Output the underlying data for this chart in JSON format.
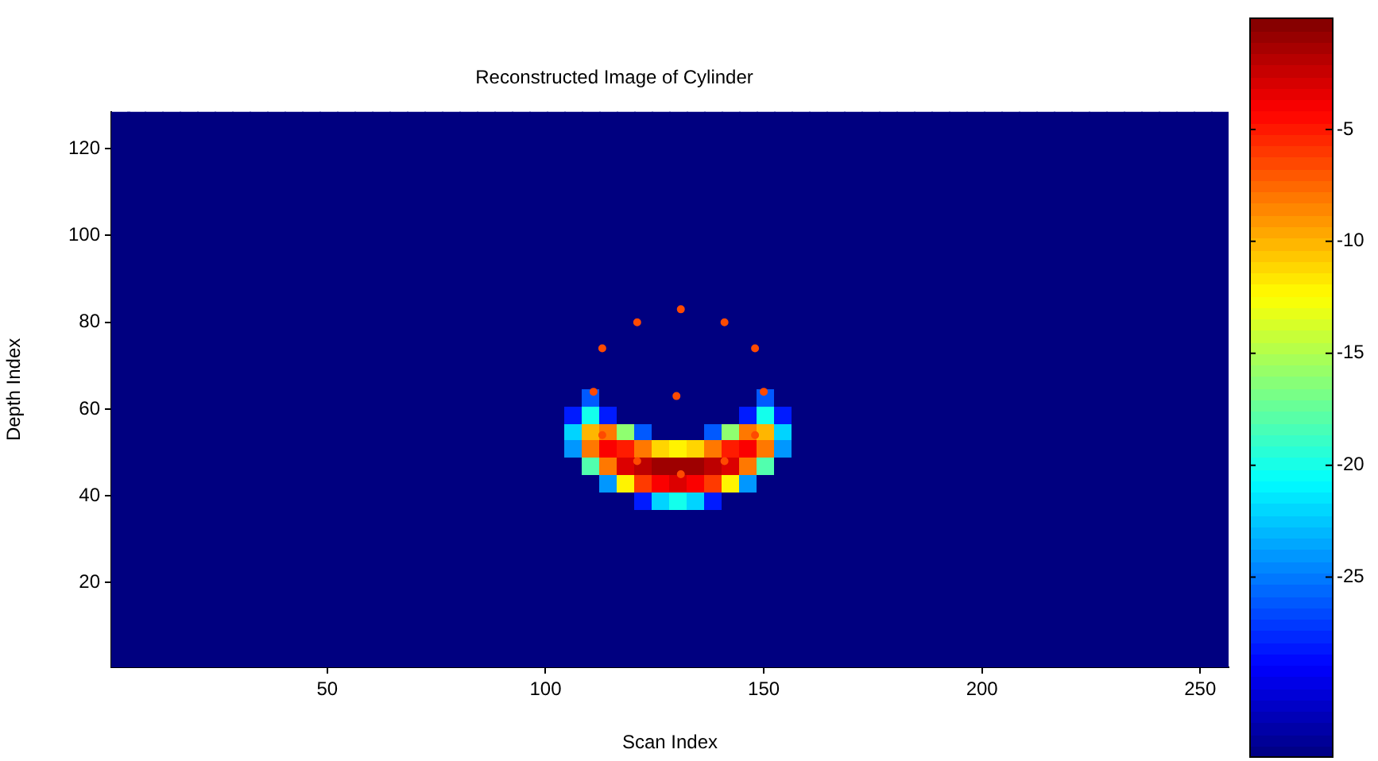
{
  "chart_data": {
    "type": "heatmap",
    "title": "Reconstructed Image of Cylinder",
    "xlabel": "Scan Index",
    "ylabel": "Depth Index",
    "xlim": [
      0.5,
      256.5
    ],
    "ylim": [
      0.5,
      128.5
    ],
    "xticks": [
      50,
      100,
      150,
      200,
      250
    ],
    "yticks": [
      20,
      40,
      60,
      80,
      100,
      120
    ],
    "clim": [
      -33,
      0
    ],
    "cticks": [
      -25,
      -20,
      -15,
      -10,
      -5
    ],
    "grid": false,
    "x": [
      2.5,
      6.5,
      10.5,
      14.5,
      18.5,
      22.5,
      26.5,
      30.5,
      34.5,
      38.5,
      42.5,
      46.5,
      50.5,
      54.5,
      58.5,
      62.5,
      66.5,
      70.5,
      74.5,
      78.5,
      82.5,
      86.5,
      90.5,
      94.5,
      98.5,
      102.5,
      106.5,
      110.5,
      114.5,
      118.5,
      122.5,
      126.5,
      130.5,
      134.5,
      138.5,
      142.5,
      146.5,
      150.5,
      154.5,
      158.5,
      162.5,
      166.5,
      170.5,
      174.5,
      178.5,
      182.5,
      186.5,
      190.5,
      194.5,
      198.5,
      202.5,
      206.5,
      210.5,
      214.5,
      218.5,
      222.5,
      226.5,
      230.5,
      234.5,
      238.5,
      242.5,
      246.5,
      250.5,
      254.5
    ],
    "y": [
      126.5,
      122.5,
      118.5,
      114.5,
      110.5,
      106.5,
      102.5,
      98.5,
      94.5,
      90.5,
      86.5,
      82.5,
      78.5,
      74.5,
      70.5,
      66.5,
      62.5,
      58.5,
      54.5,
      50.5,
      46.5,
      42.5,
      38.5,
      34.5,
      30.5,
      26.5,
      22.5,
      18.5,
      14.5,
      10.5,
      6.5,
      2.5
    ],
    "cells": [
      [
        -33,
        -33,
        -33,
        -33,
        -33,
        -33,
        -33,
        -33,
        -33,
        -33,
        -33,
        -33,
        -33,
        -33,
        -33,
        -33,
        -33,
        -33,
        -33,
        -33,
        -33,
        -33,
        -33,
        -33,
        -33,
        -33,
        -33,
        -33,
        -33,
        -33,
        -33,
        -33,
        -33,
        -33,
        -33,
        -33,
        -33,
        -33,
        -33,
        -33,
        -33,
        -33,
        -33,
        -33,
        -33,
        -33,
        -33,
        -33,
        -33,
        -33,
        -33,
        -33,
        -33,
        -33,
        -33,
        -33,
        -33,
        -33,
        -33,
        -33,
        -33,
        -33,
        -33,
        -33
      ],
      [
        -33,
        -33,
        -33,
        -33,
        -33,
        -33,
        -33,
        -33,
        -33,
        -33,
        -33,
        -33,
        -33,
        -33,
        -33,
        -33,
        -33,
        -33,
        -33,
        -33,
        -33,
        -33,
        -33,
        -33,
        -33,
        -33,
        -33,
        -33,
        -33,
        -33,
        -33,
        -33,
        -33,
        -33,
        -33,
        -33,
        -33,
        -33,
        -33,
        -33,
        -33,
        -33,
        -33,
        -33,
        -33,
        -33,
        -33,
        -33,
        -33,
        -33,
        -33,
        -33,
        -33,
        -33,
        -33,
        -33,
        -33,
        -33,
        -33,
        -33,
        -33,
        -33,
        -33,
        -33
      ],
      [
        -33,
        -33,
        -33,
        -33,
        -33,
        -33,
        -33,
        -33,
        -33,
        -33,
        -33,
        -33,
        -33,
        -33,
        -33,
        -33,
        -33,
        -33,
        -33,
        -33,
        -33,
        -33,
        -33,
        -33,
        -33,
        -33,
        -33,
        -33,
        -33,
        -33,
        -33,
        -33,
        -33,
        -33,
        -33,
        -33,
        -33,
        -33,
        -33,
        -33,
        -33,
        -33,
        -33,
        -33,
        -33,
        -33,
        -33,
        -33,
        -33,
        -33,
        -33,
        -33,
        -33,
        -33,
        -33,
        -33,
        -33,
        -33,
        -33,
        -33,
        -33,
        -33,
        -33,
        -33
      ],
      [
        -33,
        -33,
        -33,
        -33,
        -33,
        -33,
        -33,
        -33,
        -33,
        -33,
        -33,
        -33,
        -33,
        -33,
        -33,
        -33,
        -33,
        -33,
        -33,
        -33,
        -33,
        -33,
        -33,
        -33,
        -33,
        -33,
        -33,
        -33,
        -33,
        -33,
        -33,
        -33,
        -33,
        -33,
        -33,
        -33,
        -33,
        -33,
        -33,
        -33,
        -33,
        -33,
        -33,
        -33,
        -33,
        -33,
        -33,
        -33,
        -33,
        -33,
        -33,
        -33,
        -33,
        -33,
        -33,
        -33,
        -33,
        -33,
        -33,
        -33,
        -33,
        -33,
        -33,
        -33
      ],
      [
        -33,
        -33,
        -33,
        -33,
        -33,
        -33,
        -33,
        -33,
        -33,
        -33,
        -33,
        -33,
        -33,
        -33,
        -33,
        -33,
        -33,
        -33,
        -33,
        -33,
        -33,
        -33,
        -33,
        -33,
        -33,
        -33,
        -33,
        -33,
        -33,
        -33,
        -33,
        -33,
        -33,
        -33,
        -33,
        -33,
        -33,
        -33,
        -33,
        -33,
        -33,
        -33,
        -33,
        -33,
        -33,
        -33,
        -33,
        -33,
        -33,
        -33,
        -33,
        -33,
        -33,
        -33,
        -33,
        -33,
        -33,
        -33,
        -33,
        -33,
        -33,
        -33,
        -33,
        -33
      ],
      [
        -33,
        -33,
        -33,
        -33,
        -33,
        -33,
        -33,
        -33,
        -33,
        -33,
        -33,
        -33,
        -33,
        -33,
        -33,
        -33,
        -33,
        -33,
        -33,
        -33,
        -33,
        -33,
        -33,
        -33,
        -33,
        -33,
        -33,
        -33,
        -33,
        -33,
        -33,
        -33,
        -33,
        -33,
        -33,
        -33,
        -33,
        -33,
        -33,
        -33,
        -33,
        -33,
        -33,
        -33,
        -33,
        -33,
        -33,
        -33,
        -33,
        -33,
        -33,
        -33,
        -33,
        -33,
        -33,
        -33,
        -33,
        -33,
        -33,
        -33,
        -33,
        -33,
        -33,
        -33
      ],
      [
        -33,
        -33,
        -33,
        -33,
        -33,
        -33,
        -33,
        -33,
        -33,
        -33,
        -33,
        -33,
        -33,
        -33,
        -33,
        -33,
        -33,
        -33,
        -33,
        -33,
        -33,
        -33,
        -33,
        -33,
        -33,
        -33,
        -33,
        -33,
        -33,
        -33,
        -33,
        -33,
        -33,
        -33,
        -33,
        -33,
        -33,
        -33,
        -33,
        -33,
        -33,
        -33,
        -33,
        -33,
        -33,
        -33,
        -33,
        -33,
        -33,
        -33,
        -33,
        -33,
        -33,
        -33,
        -33,
        -33,
        -33,
        -33,
        -33,
        -33,
        -33,
        -33,
        -33,
        -33
      ],
      [
        -33,
        -33,
        -33,
        -33,
        -33,
        -33,
        -33,
        -33,
        -33,
        -33,
        -33,
        -33,
        -33,
        -33,
        -33,
        -33,
        -33,
        -33,
        -33,
        -33,
        -33,
        -33,
        -33,
        -33,
        -33,
        -33,
        -33,
        -33,
        -33,
        -33,
        -33,
        -33,
        -33,
        -33,
        -33,
        -33,
        -33,
        -33,
        -33,
        -33,
        -33,
        -33,
        -33,
        -33,
        -33,
        -33,
        -33,
        -33,
        -33,
        -33,
        -33,
        -33,
        -33,
        -33,
        -33,
        -33,
        -33,
        -33,
        -33,
        -33,
        -33,
        -33,
        -33,
        -33
      ],
      [
        -33,
        -33,
        -33,
        -33,
        -33,
        -33,
        -33,
        -33,
        -33,
        -33,
        -33,
        -33,
        -33,
        -33,
        -33,
        -33,
        -33,
        -33,
        -33,
        -33,
        -33,
        -33,
        -33,
        -33,
        -33,
        -33,
        -33,
        -33,
        -33,
        -33,
        -33,
        -33,
        -33,
        -33,
        -33,
        -33,
        -33,
        -33,
        -33,
        -33,
        -33,
        -33,
        -33,
        -33,
        -33,
        -33,
        -33,
        -33,
        -33,
        -33,
        -33,
        -33,
        -33,
        -33,
        -33,
        -33,
        -33,
        -33,
        -33,
        -33,
        -33,
        -33,
        -33,
        -33
      ],
      [
        -33,
        -33,
        -33,
        -33,
        -33,
        -33,
        -33,
        -33,
        -33,
        -33,
        -33,
        -33,
        -33,
        -33,
        -33,
        -33,
        -33,
        -33,
        -33,
        -33,
        -33,
        -33,
        -33,
        -33,
        -33,
        -33,
        -33,
        -33,
        -33,
        -33,
        -33,
        -33,
        -33,
        -33,
        -33,
        -33,
        -33,
        -33,
        -33,
        -33,
        -33,
        -33,
        -33,
        -33,
        -33,
        -33,
        -33,
        -33,
        -33,
        -33,
        -33,
        -33,
        -33,
        -33,
        -33,
        -33,
        -33,
        -33,
        -33,
        -33,
        -33,
        -33,
        -33,
        -33
      ],
      [
        -33,
        -33,
        -33,
        -33,
        -33,
        -33,
        -33,
        -33,
        -33,
        -33,
        -33,
        -33,
        -33,
        -33,
        -33,
        -33,
        -33,
        -33,
        -33,
        -33,
        -33,
        -33,
        -33,
        -33,
        -33,
        -33,
        -33,
        -33,
        -33,
        -33,
        -33,
        -33,
        -33,
        -33,
        -33,
        -33,
        -33,
        -33,
        -33,
        -33,
        -33,
        -33,
        -33,
        -33,
        -33,
        -33,
        -33,
        -33,
        -33,
        -33,
        -33,
        -33,
        -33,
        -33,
        -33,
        -33,
        -33,
        -33,
        -33,
        -33,
        -33,
        -33,
        -33,
        -33
      ],
      [
        -33,
        -33,
        -33,
        -33,
        -33,
        -33,
        -33,
        -33,
        -33,
        -33,
        -33,
        -33,
        -33,
        -33,
        -33,
        -33,
        -33,
        -33,
        -33,
        -33,
        -33,
        -33,
        -33,
        -33,
        -33,
        -33,
        -33,
        -33,
        -33,
        -33,
        -33,
        -33,
        -33,
        -33,
        -33,
        -33,
        -33,
        -33,
        -33,
        -33,
        -33,
        -33,
        -33,
        -33,
        -33,
        -33,
        -33,
        -33,
        -33,
        -33,
        -33,
        -33,
        -33,
        -33,
        -33,
        -33,
        -33,
        -33,
        -33,
        -33,
        -33,
        -33,
        -33,
        -33
      ],
      [
        -33,
        -33,
        -33,
        -33,
        -33,
        -33,
        -33,
        -33,
        -33,
        -33,
        -33,
        -33,
        -33,
        -33,
        -33,
        -33,
        -33,
        -33,
        -33,
        -33,
        -33,
        -33,
        -33,
        -33,
        -33,
        -33,
        -33,
        -33,
        -33,
        -33,
        -33,
        -33,
        -33,
        -33,
        -33,
        -33,
        -33,
        -33,
        -33,
        -33,
        -33,
        -33,
        -33,
        -33,
        -33,
        -33,
        -33,
        -33,
        -33,
        -33,
        -33,
        -33,
        -33,
        -33,
        -33,
        -33,
        -33,
        -33,
        -33,
        -33,
        -33,
        -33,
        -33,
        -33
      ],
      [
        -33,
        -33,
        -33,
        -33,
        -33,
        -33,
        -33,
        -33,
        -33,
        -33,
        -33,
        -33,
        -33,
        -33,
        -33,
        -33,
        -33,
        -33,
        -33,
        -33,
        -33,
        -33,
        -33,
        -33,
        -33,
        -33,
        -33,
        -33,
        -33,
        -33,
        -33,
        -33,
        -33,
        -33,
        -33,
        -33,
        -33,
        -33,
        -33,
        -33,
        -33,
        -33,
        -33,
        -33,
        -33,
        -33,
        -33,
        -33,
        -33,
        -33,
        -33,
        -33,
        -33,
        -33,
        -33,
        -33,
        -33,
        -33,
        -33,
        -33,
        -33,
        -33,
        -33,
        -33
      ],
      [
        -33,
        -33,
        -33,
        -33,
        -33,
        -33,
        -33,
        -33,
        -33,
        -33,
        -33,
        -33,
        -33,
        -33,
        -33,
        -33,
        -33,
        -33,
        -33,
        -33,
        -33,
        -33,
        -33,
        -33,
        -33,
        -33,
        -33,
        -33,
        -33,
        -33,
        -33,
        -33,
        -33,
        -33,
        -33,
        -33,
        -33,
        -33,
        -33,
        -33,
        -33,
        -33,
        -33,
        -33,
        -33,
        -33,
        -33,
        -33,
        -33,
        -33,
        -33,
        -33,
        -33,
        -33,
        -33,
        -33,
        -33,
        -33,
        -33,
        -33,
        -33,
        -33,
        -33,
        -33
      ],
      [
        -33,
        -33,
        -33,
        -33,
        -33,
        -33,
        -33,
        -33,
        -33,
        -33,
        -33,
        -33,
        -33,
        -33,
        -33,
        -33,
        -33,
        -33,
        -33,
        -33,
        -33,
        -33,
        -33,
        -33,
        -33,
        -33,
        -33,
        -33,
        -33,
        -33,
        -33,
        -33,
        -33,
        -33,
        -33,
        -33,
        -33,
        -33,
        -33,
        -33,
        -33,
        -33,
        -33,
        -33,
        -33,
        -33,
        -33,
        -33,
        -33,
        -33,
        -33,
        -33,
        -33,
        -33,
        -33,
        -33,
        -33,
        -33,
        -33,
        -33,
        -33,
        -33,
        -33,
        -33
      ],
      [
        -33,
        -33,
        -33,
        -33,
        -33,
        -33,
        -33,
        -33,
        -33,
        -33,
        -33,
        -33,
        -33,
        -33,
        -33,
        -33,
        -33,
        -33,
        -33,
        -33,
        -33,
        -33,
        -33,
        -33,
        -33,
        -33,
        -33,
        -26,
        -33,
        -33,
        -33,
        -33,
        -33,
        -33,
        -33,
        -33,
        -33,
        -26,
        -33,
        -33,
        -33,
        -33,
        -33,
        -33,
        -33,
        -33,
        -33,
        -33,
        -33,
        -33,
        -33,
        -33,
        -33,
        -33,
        -33,
        -33,
        -33,
        -33,
        -33,
        -33,
        -33,
        -33,
        -33,
        -33
      ],
      [
        -33,
        -33,
        -33,
        -33,
        -33,
        -33,
        -33,
        -33,
        -33,
        -33,
        -33,
        -33,
        -33,
        -33,
        -33,
        -33,
        -33,
        -33,
        -33,
        -33,
        -33,
        -33,
        -33,
        -33,
        -33,
        -33,
        -28,
        -20,
        -28,
        -33,
        -33,
        -33,
        -33,
        -33,
        -33,
        -33,
        -28,
        -20,
        -28,
        -33,
        -33,
        -33,
        -33,
        -33,
        -33,
        -33,
        -33,
        -33,
        -33,
        -33,
        -33,
        -33,
        -33,
        -33,
        -33,
        -33,
        -33,
        -33,
        -33,
        -33,
        -33,
        -33,
        -33,
        -33
      ],
      [
        -33,
        -33,
        -33,
        -33,
        -33,
        -33,
        -33,
        -33,
        -33,
        -33,
        -33,
        -33,
        -33,
        -33,
        -33,
        -33,
        -33,
        -33,
        -33,
        -33,
        -33,
        -33,
        -33,
        -33,
        -33,
        -33,
        -22,
        -10,
        -8,
        -16,
        -26,
        -33,
        -33,
        -33,
        -26,
        -16,
        -8,
        -10,
        -22,
        -33,
        -33,
        -33,
        -33,
        -33,
        -33,
        -33,
        -33,
        -33,
        -33,
        -33,
        -33,
        -33,
        -33,
        -33,
        -33,
        -33,
        -33,
        -33,
        -33,
        -33,
        -33,
        -33,
        -33,
        -33
      ],
      [
        -33,
        -33,
        -33,
        -33,
        -33,
        -33,
        -33,
        -33,
        -33,
        -33,
        -33,
        -33,
        -33,
        -33,
        -33,
        -33,
        -33,
        -33,
        -33,
        -33,
        -33,
        -33,
        -33,
        -33,
        -33,
        -33,
        -24,
        -8,
        -4,
        -5,
        -8,
        -11,
        -12,
        -11,
        -8,
        -5,
        -4,
        -8,
        -24,
        -33,
        -33,
        -33,
        -33,
        -33,
        -33,
        -33,
        -33,
        -33,
        -33,
        -33,
        -33,
        -33,
        -33,
        -33,
        -33,
        -33,
        -33,
        -33,
        -33,
        -33,
        -33,
        -33,
        -33,
        -33
      ],
      [
        -33,
        -33,
        -33,
        -33,
        -33,
        -33,
        -33,
        -33,
        -33,
        -33,
        -33,
        -33,
        -33,
        -33,
        -33,
        -33,
        -33,
        -33,
        -33,
        -33,
        -33,
        -33,
        -33,
        -33,
        -33,
        -33,
        -33,
        -18,
        -8,
        -3,
        -2,
        -1,
        -1,
        -1,
        -2,
        -3,
        -8,
        -18,
        -33,
        -33,
        -33,
        -33,
        -33,
        -33,
        -33,
        -33,
        -33,
        -33,
        -33,
        -33,
        -33,
        -33,
        -33,
        -33,
        -33,
        -33,
        -33,
        -33,
        -33,
        -33,
        -33,
        -33,
        -33,
        -33
      ],
      [
        -33,
        -33,
        -33,
        -33,
        -33,
        -33,
        -33,
        -33,
        -33,
        -33,
        -33,
        -33,
        -33,
        -33,
        -33,
        -33,
        -33,
        -33,
        -33,
        -33,
        -33,
        -33,
        -33,
        -33,
        -33,
        -33,
        -33,
        -33,
        -24,
        -12,
        -6,
        -4,
        -3,
        -4,
        -6,
        -12,
        -24,
        -33,
        -33,
        -33,
        -33,
        -33,
        -33,
        -33,
        -33,
        -33,
        -33,
        -33,
        -33,
        -33,
        -33,
        -33,
        -33,
        -33,
        -33,
        -33,
        -33,
        -33,
        -33,
        -33,
        -33,
        -33,
        -33,
        -33
      ],
      [
        -33,
        -33,
        -33,
        -33,
        -33,
        -33,
        -33,
        -33,
        -33,
        -33,
        -33,
        -33,
        -33,
        -33,
        -33,
        -33,
        -33,
        -33,
        -33,
        -33,
        -33,
        -33,
        -33,
        -33,
        -33,
        -33,
        -33,
        -33,
        -33,
        -33,
        -28,
        -22,
        -20,
        -22,
        -28,
        -33,
        -33,
        -33,
        -33,
        -33,
        -33,
        -33,
        -33,
        -33,
        -33,
        -33,
        -33,
        -33,
        -33,
        -33,
        -33,
        -33,
        -33,
        -33,
        -33,
        -33,
        -33,
        -33,
        -33,
        -33,
        -33,
        -33,
        -33,
        -33
      ],
      [
        -33,
        -33,
        -33,
        -33,
        -33,
        -33,
        -33,
        -33,
        -33,
        -33,
        -33,
        -33,
        -33,
        -33,
        -33,
        -33,
        -33,
        -33,
        -33,
        -33,
        -33,
        -33,
        -33,
        -33,
        -33,
        -33,
        -33,
        -33,
        -33,
        -33,
        -33,
        -33,
        -33,
        -33,
        -33,
        -33,
        -33,
        -33,
        -33,
        -33,
        -33,
        -33,
        -33,
        -33,
        -33,
        -33,
        -33,
        -33,
        -33,
        -33,
        -33,
        -33,
        -33,
        -33,
        -33,
        -33,
        -33,
        -33,
        -33,
        -33,
        -33,
        -33,
        -33,
        -33
      ],
      [
        -33,
        -33,
        -33,
        -33,
        -33,
        -33,
        -33,
        -33,
        -33,
        -33,
        -33,
        -33,
        -33,
        -33,
        -33,
        -33,
        -33,
        -33,
        -33,
        -33,
        -33,
        -33,
        -33,
        -33,
        -33,
        -33,
        -33,
        -33,
        -33,
        -33,
        -33,
        -33,
        -33,
        -33,
        -33,
        -33,
        -33,
        -33,
        -33,
        -33,
        -33,
        -33,
        -33,
        -33,
        -33,
        -33,
        -33,
        -33,
        -33,
        -33,
        -33,
        -33,
        -33,
        -33,
        -33,
        -33,
        -33,
        -33,
        -33,
        -33,
        -33,
        -33,
        -33,
        -33
      ],
      [
        -33,
        -33,
        -33,
        -33,
        -33,
        -33,
        -33,
        -33,
        -33,
        -33,
        -33,
        -33,
        -33,
        -33,
        -33,
        -33,
        -33,
        -33,
        -33,
        -33,
        -33,
        -33,
        -33,
        -33,
        -33,
        -33,
        -33,
        -33,
        -33,
        -33,
        -33,
        -33,
        -33,
        -33,
        -33,
        -33,
        -33,
        -33,
        -33,
        -33,
        -33,
        -33,
        -33,
        -33,
        -33,
        -33,
        -33,
        -33,
        -33,
        -33,
        -33,
        -33,
        -33,
        -33,
        -33,
        -33,
        -33,
        -33,
        -33,
        -33,
        -33,
        -33,
        -33,
        -33
      ],
      [
        -33,
        -33,
        -33,
        -33,
        -33,
        -33,
        -33,
        -33,
        -33,
        -33,
        -33,
        -33,
        -33,
        -33,
        -33,
        -33,
        -33,
        -33,
        -33,
        -33,
        -33,
        -33,
        -33,
        -33,
        -33,
        -33,
        -33,
        -33,
        -33,
        -33,
        -33,
        -33,
        -33,
        -33,
        -33,
        -33,
        -33,
        -33,
        -33,
        -33,
        -33,
        -33,
        -33,
        -33,
        -33,
        -33,
        -33,
        -33,
        -33,
        -33,
        -33,
        -33,
        -33,
        -33,
        -33,
        -33,
        -33,
        -33,
        -33,
        -33,
        -33,
        -33,
        -33,
        -33
      ],
      [
        -33,
        -33,
        -33,
        -33,
        -33,
        -33,
        -33,
        -33,
        -33,
        -33,
        -33,
        -33,
        -33,
        -33,
        -33,
        -33,
        -33,
        -33,
        -33,
        -33,
        -33,
        -33,
        -33,
        -33,
        -33,
        -33,
        -33,
        -33,
        -33,
        -33,
        -33,
        -33,
        -33,
        -33,
        -33,
        -33,
        -33,
        -33,
        -33,
        -33,
        -33,
        -33,
        -33,
        -33,
        -33,
        -33,
        -33,
        -33,
        -33,
        -33,
        -33,
        -33,
        -33,
        -33,
        -33,
        -33,
        -33,
        -33,
        -33,
        -33,
        -33,
        -33,
        -33,
        -33
      ],
      [
        -33,
        -33,
        -33,
        -33,
        -33,
        -33,
        -33,
        -33,
        -33,
        -33,
        -33,
        -33,
        -33,
        -33,
        -33,
        -33,
        -33,
        -33,
        -33,
        -33,
        -33,
        -33,
        -33,
        -33,
        -33,
        -33,
        -33,
        -33,
        -33,
        -33,
        -33,
        -33,
        -33,
        -33,
        -33,
        -33,
        -33,
        -33,
        -33,
        -33,
        -33,
        -33,
        -33,
        -33,
        -33,
        -33,
        -33,
        -33,
        -33,
        -33,
        -33,
        -33,
        -33,
        -33,
        -33,
        -33,
        -33,
        -33,
        -33,
        -33,
        -33,
        -33,
        -33,
        -33
      ],
      [
        -33,
        -33,
        -33,
        -33,
        -33,
        -33,
        -33,
        -33,
        -33,
        -33,
        -33,
        -33,
        -33,
        -33,
        -33,
        -33,
        -33,
        -33,
        -33,
        -33,
        -33,
        -33,
        -33,
        -33,
        -33,
        -33,
        -33,
        -33,
        -33,
        -33,
        -33,
        -33,
        -33,
        -33,
        -33,
        -33,
        -33,
        -33,
        -33,
        -33,
        -33,
        -33,
        -33,
        -33,
        -33,
        -33,
        -33,
        -33,
        -33,
        -33,
        -33,
        -33,
        -33,
        -33,
        -33,
        -33,
        -33,
        -33,
        -33,
        -33,
        -33,
        -33,
        -33,
        -33
      ],
      [
        -33,
        -33,
        -33,
        -33,
        -33,
        -33,
        -33,
        -33,
        -33,
        -33,
        -33,
        -33,
        -33,
        -33,
        -33,
        -33,
        -33,
        -33,
        -33,
        -33,
        -33,
        -33,
        -33,
        -33,
        -33,
        -33,
        -33,
        -33,
        -33,
        -33,
        -33,
        -33,
        -33,
        -33,
        -33,
        -33,
        -33,
        -33,
        -33,
        -33,
        -33,
        -33,
        -33,
        -33,
        -33,
        -33,
        -33,
        -33,
        -33,
        -33,
        -33,
        -33,
        -33,
        -33,
        -33,
        -33,
        -33,
        -33,
        -33,
        -33,
        -33,
        -33,
        -33,
        -33
      ],
      [
        -33,
        -33,
        -33,
        -33,
        -33,
        -33,
        -33,
        -33,
        -33,
        -33,
        -33,
        -33,
        -33,
        -33,
        -33,
        -33,
        -33,
        -33,
        -33,
        -33,
        -33,
        -33,
        -33,
        -33,
        -33,
        -33,
        -33,
        -33,
        -33,
        -33,
        -33,
        -33,
        -33,
        -33,
        -33,
        -33,
        -33,
        -33,
        -33,
        -33,
        -33,
        -33,
        -33,
        -33,
        -33,
        -33,
        -33,
        -33,
        -33,
        -33,
        -33,
        -33,
        -33,
        -33,
        -33,
        -33,
        -33,
        -33,
        -33,
        -33,
        -33,
        -33,
        -33,
        -33
      ]
    ],
    "series": [
      {
        "type": "scatter",
        "color": "#ff4a00",
        "marker": "circle",
        "x": [
          131,
          121,
          141,
          113,
          148,
          111,
          150,
          130,
          113,
          148,
          121,
          141,
          131
        ],
        "values": [
          83,
          80,
          80,
          74,
          74,
          64,
          64,
          63,
          54,
          54,
          48,
          48,
          45
        ]
      }
    ]
  }
}
